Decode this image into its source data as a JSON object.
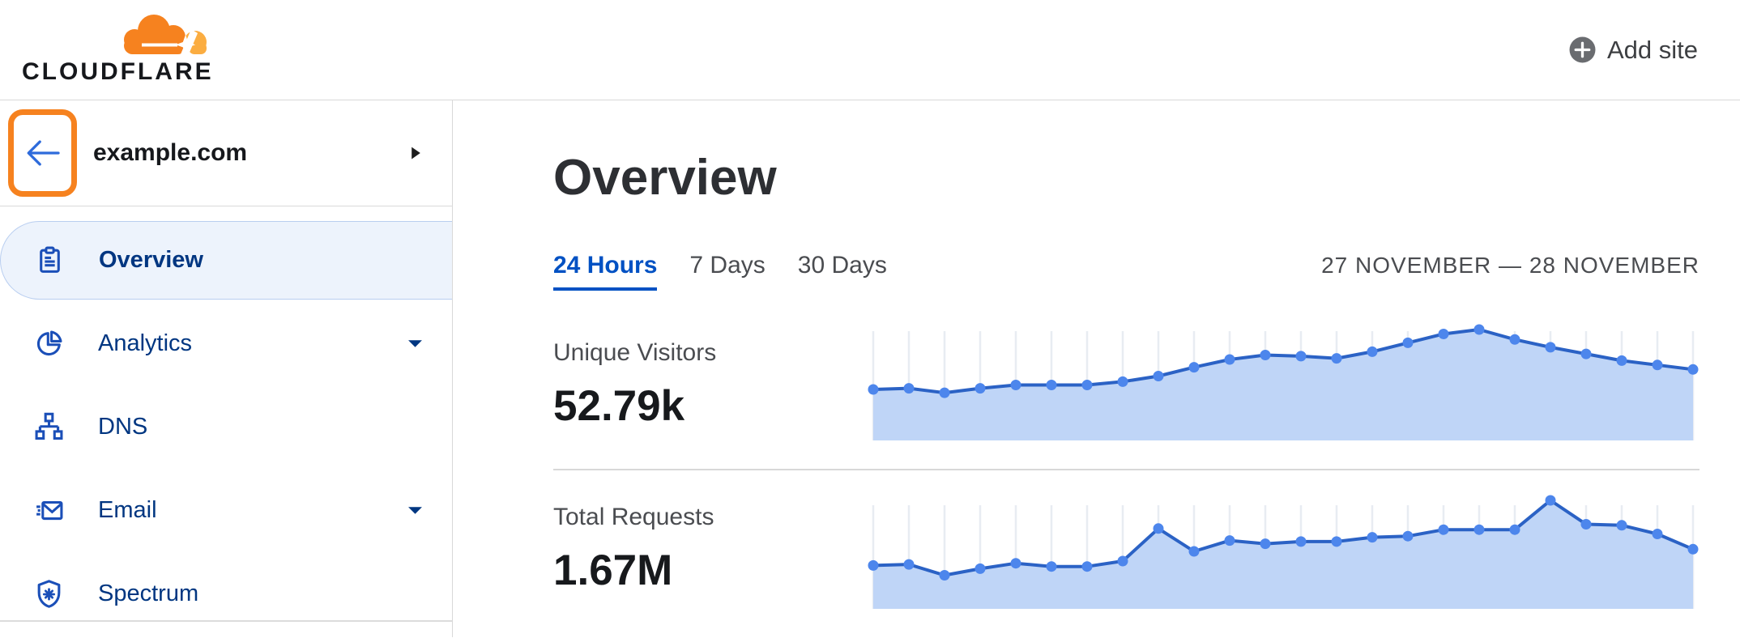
{
  "header": {
    "logo_text": "CLOUDFLARE",
    "add_site_label": "Add site"
  },
  "sidebar": {
    "site_name": "example.com",
    "items": [
      {
        "label": "Overview",
        "icon": "clipboard-icon",
        "selected": true,
        "expandable": false
      },
      {
        "label": "Analytics",
        "icon": "pie-chart-icon",
        "selected": false,
        "expandable": true
      },
      {
        "label": "DNS",
        "icon": "sitemap-icon",
        "selected": false,
        "expandable": false
      },
      {
        "label": "Email",
        "icon": "envelope-icon",
        "selected": false,
        "expandable": true
      },
      {
        "label": "Spectrum",
        "icon": "shield-icon",
        "selected": false,
        "expandable": false
      }
    ]
  },
  "main": {
    "title": "Overview",
    "tabs": [
      {
        "label": "24 Hours",
        "active": true
      },
      {
        "label": "7 Days",
        "active": false
      },
      {
        "label": "30 Days",
        "active": false
      }
    ],
    "date_range": "27 NOVEMBER — 28 NOVEMBER",
    "stats": [
      {
        "label": "Unique Visitors",
        "value": "52.79k"
      },
      {
        "label": "Total Requests",
        "value": "1.67M"
      }
    ]
  },
  "colors": {
    "brand_orange": "#F6821F",
    "brand_orange_light": "#FBAD41",
    "highlight_annotation": "#F6821F",
    "link_blue": "#0051C3",
    "nav_text_navy": "#003681",
    "nav_icon_blue": "#1B4FB8",
    "back_arrow_blue": "#2E6BDB",
    "chart_line": "#2B62C5",
    "chart_dot": "#4D86EC",
    "chart_fill": "#BFD5F7",
    "chart_grid": "#E8ECF2"
  },
  "chart_data": [
    {
      "type": "area",
      "title": "Unique Visitors",
      "period": "24 Hours",
      "total_label": "52.79k",
      "points": 24,
      "x_unit": "hour",
      "x_labels_visible": false,
      "y_axis_visible": false,
      "grid": "vertical line at every data point",
      "values_pct_of_max": [
        46,
        47,
        43,
        47,
        50,
        50,
        50,
        53,
        58,
        66,
        73,
        77,
        76,
        74,
        80,
        88,
        96,
        100,
        91,
        84,
        78,
        72,
        68,
        64
      ]
    },
    {
      "type": "area",
      "title": "Total Requests",
      "period": "24 Hours",
      "total_label": "1.67M",
      "points": 24,
      "x_unit": "hour",
      "x_labels_visible": false,
      "y_axis_visible": false,
      "grid": "vertical line at every data point",
      "values_pct_of_max": [
        40,
        41,
        31,
        37,
        42,
        39,
        39,
        44,
        74,
        53,
        63,
        60,
        62,
        62,
        66,
        67,
        73,
        73,
        73,
        100,
        78,
        77,
        69,
        55
      ]
    }
  ]
}
